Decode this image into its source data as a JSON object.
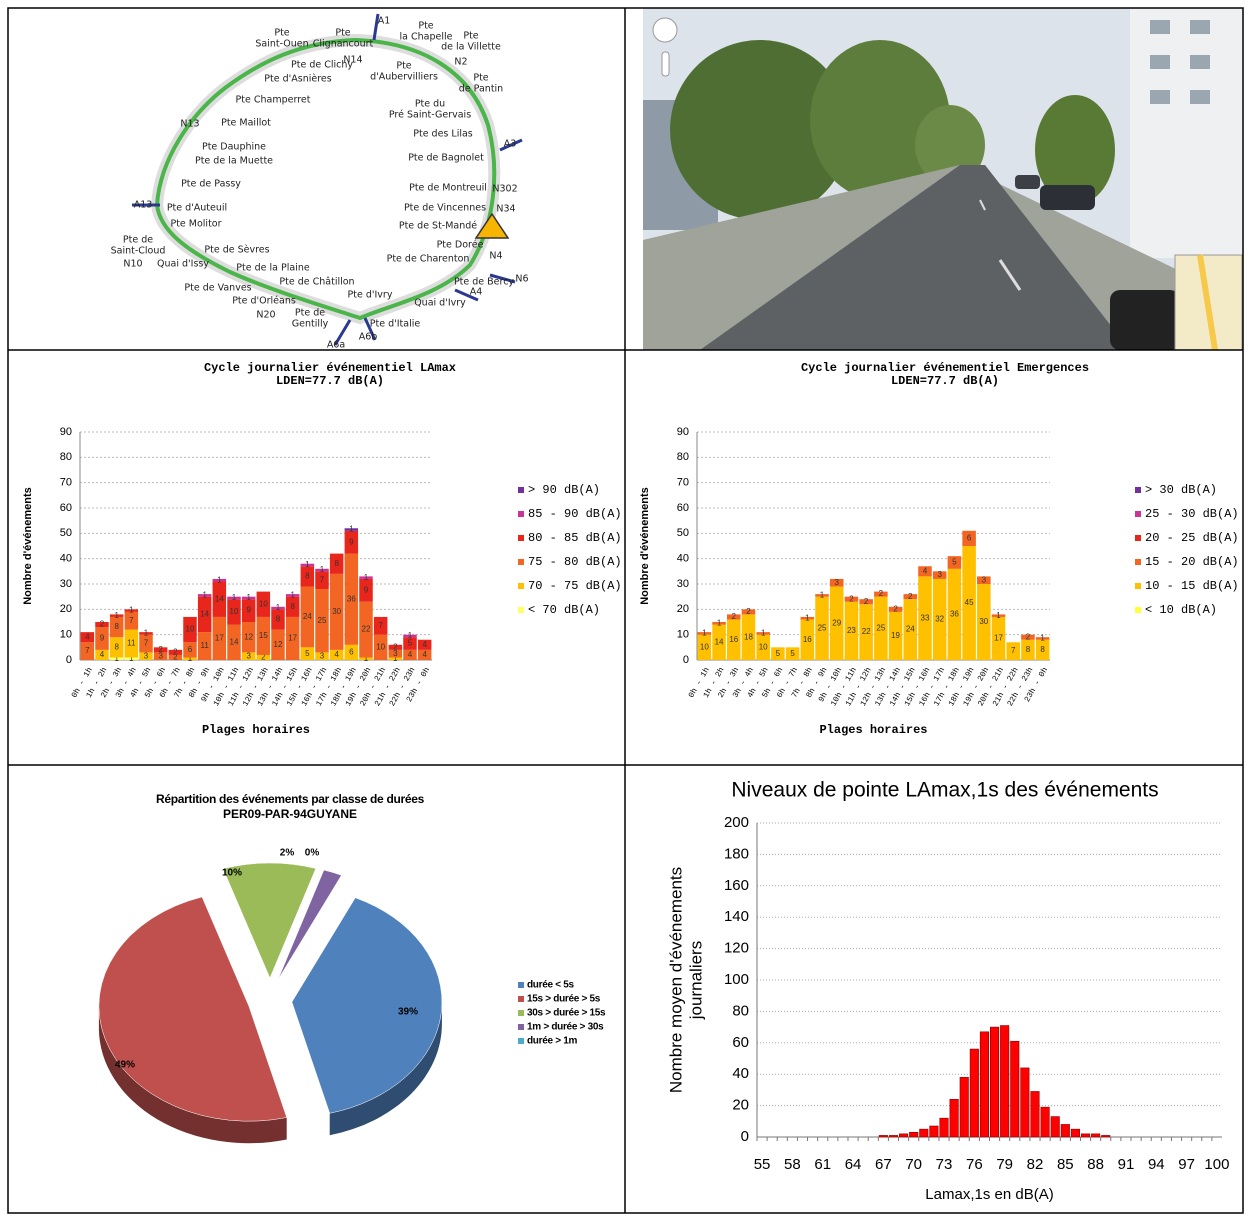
{
  "map": {
    "labels": [
      [
        "Pte",
        "Saint-Ouen"
      ],
      [
        "Pte",
        "Clignancourt"
      ],
      [
        "Pte",
        "la Chapelle"
      ],
      [
        "Pte",
        "de la Villette"
      ],
      [
        "Pte de Clichy"
      ],
      [
        "Pte d'Asnières"
      ],
      [
        "Pte",
        "d'Aubervilliers"
      ],
      [
        "Pte",
        "de Pantin"
      ],
      [
        "Pte Champerret"
      ],
      [
        "Pte du",
        "Pré Saint-Gervais"
      ],
      [
        "Pte Maillot"
      ],
      [
        "Pte des Lilas"
      ],
      [
        "Pte Dauphine"
      ],
      [
        "Pte de la Muette"
      ],
      [
        "Pte de Bagnolet"
      ],
      [
        "Pte de Passy"
      ],
      [
        "Pte de Montreuil"
      ],
      [
        "Pte d'Auteuil"
      ],
      [
        "Pte de Vincennes"
      ],
      [
        "Pte Molitor"
      ],
      [
        "Pte de St-Mandé"
      ],
      [
        "Pte de",
        "Saint-Cloud"
      ],
      [
        "Quai d'Issy"
      ],
      [
        "Pte de Sèvres"
      ],
      [
        "Pte Dorée"
      ],
      [
        "Pte de Charenton"
      ],
      [
        "Pte de la Plaine"
      ],
      [
        "Pte de Châtillon"
      ],
      [
        "Pte de Bercy"
      ],
      [
        "Pte de Vanves"
      ],
      [
        "Pte d'Ivry"
      ],
      [
        "Quai d'Ivry"
      ],
      [
        "Pte d'Orléans"
      ],
      [
        "Pte de",
        "Gentilly"
      ],
      [
        "Pte d'Italie"
      ]
    ],
    "roads": [
      "A1",
      "N14",
      "N2",
      "N13",
      "A3",
      "N302",
      "N34",
      "A13",
      "N10",
      "N4",
      "N6",
      "A4",
      "N20",
      "A6b",
      "A6a"
    ]
  },
  "chart_data": [
    {
      "type": "bar",
      "stacked": true,
      "title": "Cycle journalier événementiel LAmax",
      "subtitle": "LDEN=77.7 dB(A)",
      "xlabel": "Plages horaires",
      "ylabel": "Nombre d'événements",
      "categories": [
        "0h - 1h",
        "1h - 2h",
        "2h - 3h",
        "3h - 4h",
        "4h - 5h",
        "5h - 6h",
        "6h - 7h",
        "7h - 8h",
        "8h - 9h",
        "9h - 10h",
        "10h - 11h",
        "11h - 12h",
        "12h - 13h",
        "13h - 14h",
        "14h - 15h",
        "15h - 16h",
        "16h - 17h",
        "17h - 18h",
        "18h - 19h",
        "19h - 20h",
        "20h - 21h",
        "21h - 22h",
        "22h - 23h",
        "23h - 0h"
      ],
      "series": [
        {
          "name": "< 70 dB(A)",
          "color": "#ffff66",
          "values": [
            0,
            0,
            1,
            1,
            0,
            0,
            0,
            0,
            0,
            0,
            0,
            0,
            0,
            0,
            0,
            0,
            0,
            0,
            0,
            0,
            0,
            0,
            0,
            0
          ]
        },
        {
          "name": "70 - 75 dB(A)",
          "color": "#ffc000",
          "values": [
            0,
            4,
            8,
            11,
            3,
            0,
            0,
            1,
            0,
            0,
            0,
            3,
            2,
            0,
            0,
            5,
            3,
            4,
            6,
            1,
            0,
            1,
            0,
            0
          ]
        },
        {
          "name": "75 - 80 dB(A)",
          "color": "#f26522",
          "values": [
            7,
            9,
            8,
            7,
            7,
            3,
            2,
            6,
            11,
            17,
            14,
            12,
            15,
            12,
            17,
            24,
            25,
            30,
            36,
            22,
            10,
            3,
            4,
            4
          ]
        },
        {
          "name": "80 - 85 dB(A)",
          "color": "#e8261c",
          "values": [
            4,
            2,
            1,
            1,
            1,
            2,
            2,
            10,
            14,
            14,
            10,
            9,
            10,
            8,
            8,
            8,
            7,
            8,
            9,
            9,
            7,
            2,
            5,
            4
          ]
        },
        {
          "name": "85 - 90 dB(A)",
          "color": "#cc3399",
          "values": [
            0,
            0,
            0,
            0,
            0,
            0,
            0,
            0,
            1,
            1,
            1,
            1,
            0,
            1,
            1,
            1,
            1,
            0,
            0,
            1,
            0,
            0,
            1,
            0
          ]
        },
        {
          "name": "> 90 dB(A)",
          "color": "#7030a0",
          "values": [
            0,
            0,
            0,
            0,
            0,
            0,
            0,
            0,
            0,
            0,
            0,
            0,
            0,
            0,
            0,
            0,
            0,
            0,
            1,
            0,
            0,
            0,
            0,
            0
          ]
        }
      ],
      "ylim": [
        0,
        90
      ],
      "yticks": [
        0,
        10,
        20,
        30,
        40,
        50,
        60,
        70,
        80,
        90
      ],
      "grid": true,
      "legend": "right"
    },
    {
      "type": "bar",
      "stacked": true,
      "title": "Cycle journalier événementiel Emergences",
      "subtitle": "LDEN=77.7 dB(A)",
      "xlabel": "Plages horaires",
      "ylabel": "Nombre d'événements",
      "categories": [
        "0h - 1h",
        "1h - 2h",
        "2h - 3h",
        "3h - 4h",
        "4h - 5h",
        "5h - 6h",
        "6h - 7h",
        "7h - 8h",
        "8h - 9h",
        "9h - 10h",
        "10h - 11h",
        "11h - 12h",
        "12h - 13h",
        "13h - 14h",
        "14h - 15h",
        "15h - 16h",
        "16h - 17h",
        "17h - 18h",
        "18h - 19h",
        "19h - 20h",
        "20h - 21h",
        "21h - 22h",
        "22h - 23h",
        "23h - 0h"
      ],
      "series": [
        {
          "name": "< 10 dB(A)",
          "color": "#ffff33",
          "values": [
            0,
            0,
            0,
            0,
            0,
            0,
            0,
            0,
            0,
            0,
            0,
            0,
            0,
            0,
            0,
            0,
            0,
            0,
            0,
            0,
            0,
            0,
            0,
            0
          ]
        },
        {
          "name": "10 - 15 dB(A)",
          "color": "#ffc000",
          "values": [
            10,
            14,
            16,
            18,
            10,
            5,
            5,
            16,
            25,
            29,
            23,
            22,
            25,
            19,
            24,
            33,
            32,
            36,
            45,
            30,
            17,
            7,
            8,
            8
          ]
        },
        {
          "name": "15 - 20 dB(A)",
          "color": "#f26522",
          "values": [
            1,
            1,
            2,
            2,
            1,
            0,
            0,
            1,
            1,
            3,
            2,
            2,
            2,
            2,
            2,
            4,
            3,
            5,
            6,
            3,
            1,
            0,
            2,
            1
          ]
        },
        {
          "name": "20 - 25 dB(A)",
          "color": "#e8261c",
          "values": [
            0,
            0,
            0,
            0,
            0,
            0,
            0,
            0,
            0,
            0,
            0,
            0,
            0,
            0,
            0,
            0,
            0,
            0,
            0,
            0,
            0,
            0,
            0,
            0
          ]
        },
        {
          "name": "25 - 30 dB(A)",
          "color": "#cc3399",
          "values": [
            0,
            0,
            0,
            0,
            0,
            0,
            0,
            0,
            0,
            0,
            0,
            0,
            0,
            0,
            0,
            0,
            0,
            0,
            0,
            0,
            0,
            0,
            0,
            0
          ]
        },
        {
          "name": "> 30 dB(A)",
          "color": "#7030a0",
          "values": [
            0,
            0,
            0,
            0,
            0,
            0,
            0,
            0,
            0,
            0,
            0,
            0,
            0,
            0,
            0,
            0,
            0,
            0,
            0,
            0,
            0,
            0,
            0,
            0
          ]
        }
      ],
      "ylim": [
        0,
        90
      ],
      "yticks": [
        0,
        10,
        20,
        30,
        40,
        50,
        60,
        70,
        80,
        90
      ],
      "grid": true,
      "legend": "right"
    },
    {
      "type": "pie",
      "title": "Répartition des événements par classe de durées",
      "subtitle": "PER09-PAR-94GUYANE",
      "categories": [
        "durée < 5s",
        "15s > durée > 5s",
        "30s > durée > 15s",
        "1m > durée > 30s",
        "durée > 1m"
      ],
      "values": [
        39,
        49,
        10,
        2,
        0
      ],
      "value_labels": [
        "39%",
        "49%",
        "10%",
        "2%",
        "0%"
      ],
      "colors": [
        "#4f81bd",
        "#c0504d",
        "#9bbb59",
        "#8064a2",
        "#4bacc6"
      ],
      "legend": "right"
    },
    {
      "type": "bar",
      "title": "Niveaux de pointe LAmax,1s des événements",
      "xlabel": "Lamax,1s en dB(A)",
      "ylabel": [
        "Nombre moyen d'événements",
        "journaliers"
      ],
      "x": [
        55,
        56,
        57,
        58,
        59,
        60,
        61,
        62,
        63,
        64,
        65,
        66,
        67,
        68,
        69,
        70,
        71,
        72,
        73,
        74,
        75,
        76,
        77,
        78,
        79,
        80,
        81,
        82,
        83,
        84,
        85,
        86,
        87,
        88,
        89,
        90,
        91,
        92,
        93,
        94,
        95,
        96,
        97,
        98,
        99,
        100
      ],
      "values": [
        0,
        0,
        0,
        0,
        0,
        0,
        0,
        0,
        0,
        0,
        0,
        0,
        1,
        1,
        2,
        3,
        5,
        7,
        12,
        24,
        38,
        56,
        67,
        70,
        71,
        61,
        44,
        29,
        19,
        13,
        8,
        5,
        2,
        2,
        1,
        0,
        0,
        0,
        0,
        0,
        0,
        0,
        0,
        0,
        0,
        0
      ],
      "color": "#ff0000",
      "xlim": [
        54.5,
        100.5
      ],
      "xticks": [
        55,
        58,
        61,
        64,
        67,
        70,
        73,
        76,
        79,
        82,
        85,
        88,
        91,
        94,
        97,
        100
      ],
      "ylim": [
        0,
        200
      ],
      "yticks": [
        0,
        20,
        40,
        60,
        80,
        100,
        120,
        140,
        160,
        180,
        200
      ],
      "grid": true
    }
  ]
}
